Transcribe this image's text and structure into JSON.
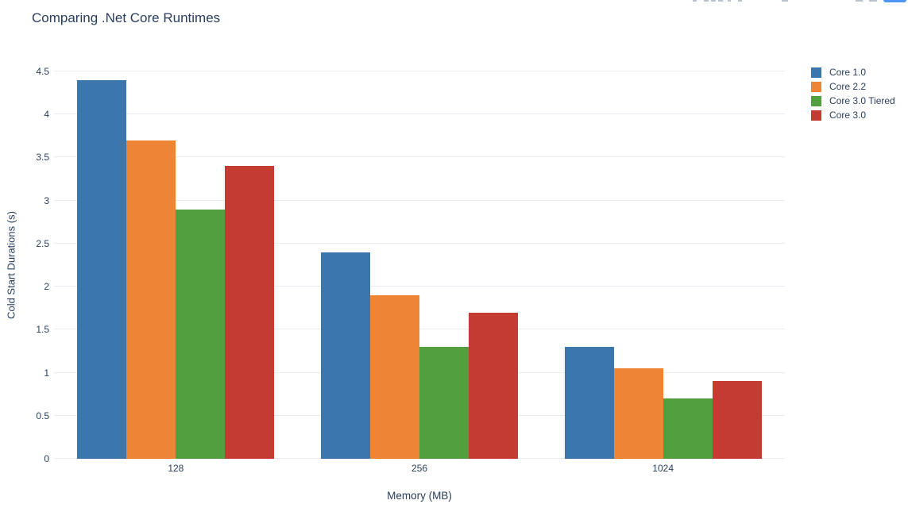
{
  "chart_data": {
    "type": "bar",
    "title": "Comparing .Net Core Runtimes",
    "categories": [
      "128",
      "256",
      "1024"
    ],
    "series": [
      {
        "name": "Core 1.0",
        "color": "#3b76ad",
        "values": [
          4.4,
          2.4,
          1.3
        ]
      },
      {
        "name": "Core 2.2",
        "color": "#ee8435",
        "values": [
          3.7,
          1.9,
          1.05
        ]
      },
      {
        "name": "Core 3.0 Tiered",
        "color": "#519f3e",
        "values": [
          2.9,
          1.3,
          0.7
        ]
      },
      {
        "name": "Core 3.0",
        "color": "#c43b32",
        "values": [
          3.4,
          1.7,
          0.9
        ]
      }
    ],
    "xlabel": "Memory (MB)",
    "ylabel": "Cold Start Durations (s)",
    "ylim": [
      0,
      4.5
    ],
    "yticks": [
      0,
      0.5,
      1,
      1.5,
      2,
      2.5,
      3,
      3.5,
      4,
      4.5
    ],
    "grid": true,
    "legend_position": "top-right",
    "colors": {
      "text": "#2a3f5f",
      "gridline": "#e9edf3",
      "background": "#ffffff",
      "plotly_logo_blue": "#4f93f3"
    }
  }
}
